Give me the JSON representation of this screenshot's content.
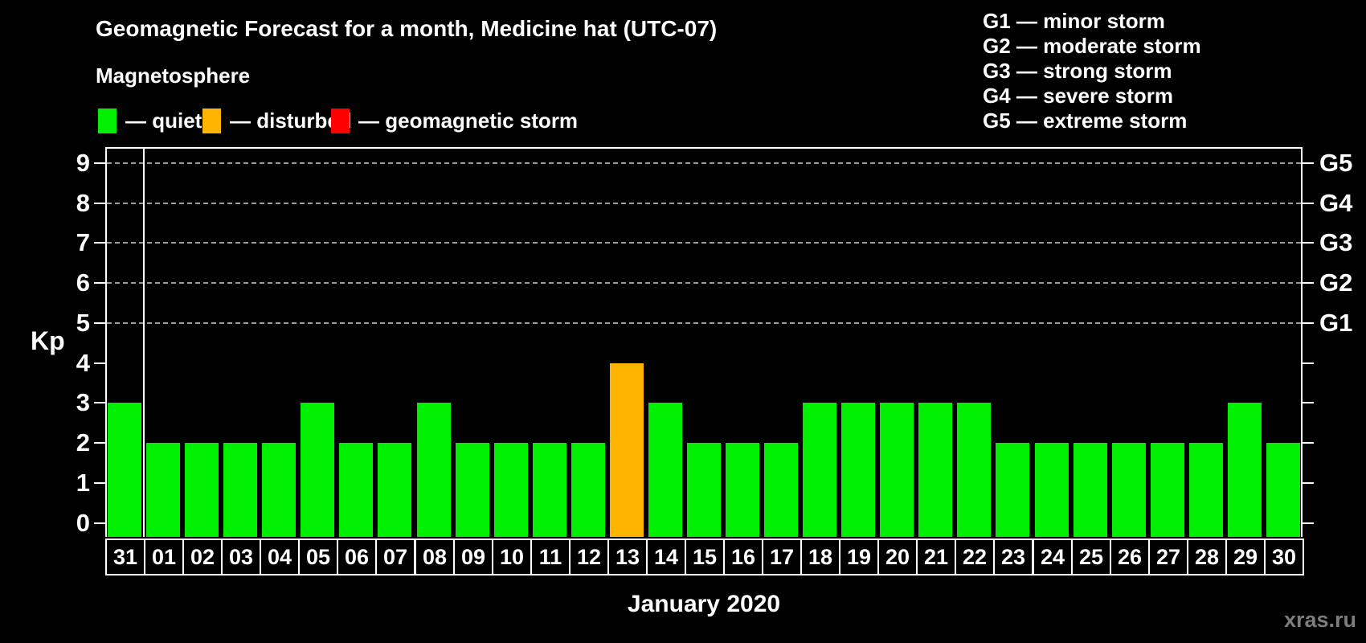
{
  "header": {
    "title": "Geomagnetic Forecast for a month, Medicine hat (UTC-07)",
    "subtitle": "Magnetosphere"
  },
  "legend": {
    "items": [
      {
        "key": "quiet",
        "label": "— quiet",
        "color": "#00ee00"
      },
      {
        "key": "disturbed",
        "label": "— disturbed",
        "color": "#ffb400"
      },
      {
        "key": "storm",
        "label": "— geomagnetic storm",
        "color": "#ff0000"
      }
    ]
  },
  "storm_scale_legend": {
    "items": [
      {
        "code": "G1",
        "label": "G1 — minor storm"
      },
      {
        "code": "G2",
        "label": "G2 — moderate storm"
      },
      {
        "code": "G3",
        "label": "G3 — strong storm"
      },
      {
        "code": "G4",
        "label": "G4 — severe storm"
      },
      {
        "code": "G5",
        "label": "G5 — extreme storm"
      }
    ]
  },
  "watermark": "xras.ru",
  "colors": {
    "background": "#000000",
    "text": "#ffffff",
    "grid": "#9b9b9b",
    "watermark": "#7d7d7d"
  },
  "chart_data": {
    "type": "bar",
    "title": "Geomagnetic Forecast for a month, Medicine hat (UTC-07)",
    "xlabel": "January 2020",
    "ylabel": "Kp",
    "ylim": [
      0,
      9
    ],
    "categories": [
      "31",
      "01",
      "02",
      "03",
      "04",
      "05",
      "06",
      "07",
      "08",
      "09",
      "10",
      "11",
      "12",
      "13",
      "14",
      "15",
      "16",
      "17",
      "18",
      "19",
      "20",
      "21",
      "22",
      "23",
      "24",
      "25",
      "26",
      "27",
      "28",
      "29",
      "30"
    ],
    "values": [
      3,
      2,
      2,
      2,
      2,
      3,
      2,
      2,
      3,
      2,
      2,
      2,
      2,
      4,
      3,
      2,
      2,
      2,
      3,
      3,
      3,
      3,
      3,
      2,
      2,
      2,
      2,
      2,
      2,
      3,
      2
    ],
    "y_ticks": [
      0,
      1,
      2,
      3,
      4,
      5,
      6,
      7,
      8,
      9
    ],
    "gridlines_at": [
      5,
      6,
      7,
      8,
      9
    ],
    "right_axis_labels": [
      {
        "label": "G1",
        "value": 5
      },
      {
        "label": "G2",
        "value": 6
      },
      {
        "label": "G3",
        "value": 7
      },
      {
        "label": "G4",
        "value": 8
      },
      {
        "label": "G5",
        "value": 9
      }
    ],
    "series_colors": {
      "quiet": "#00ee00",
      "disturbed": "#ffb400",
      "storm": "#ff0000"
    },
    "thresholds": {
      "disturbed": 4,
      "storm": 5
    },
    "prev_month_separator_after_index": 0,
    "legend_position": "top",
    "grid": "dashed"
  }
}
